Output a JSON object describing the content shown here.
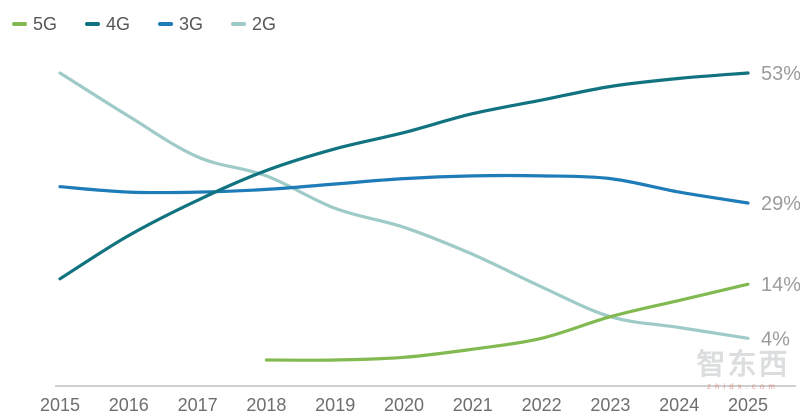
{
  "chart_data": {
    "type": "line",
    "title": "",
    "xlabel": "",
    "ylabel": "",
    "x": [
      "2015",
      "2016",
      "2017",
      "2018",
      "2019",
      "2020",
      "2021",
      "2022",
      "2023",
      "2024",
      "2025"
    ],
    "ylim": [
      0,
      56
    ],
    "grid": false,
    "legend_position": "top-left",
    "unit": "%",
    "series": [
      {
        "name": "5G",
        "color": "#82ba51",
        "end_label": "14%",
        "values": [
          null,
          null,
          null,
          0,
          0,
          0.5,
          2,
          4,
          8,
          11,
          14
        ]
      },
      {
        "name": "4G",
        "color": "#117380",
        "end_label": "53%",
        "values": [
          15,
          23,
          29.5,
          35,
          39,
          42,
          45.5,
          48,
          50.5,
          52,
          53
        ]
      },
      {
        "name": "3G",
        "color": "#1e7cb8",
        "end_label": "29%",
        "values": [
          32,
          31,
          31,
          31.5,
          32.5,
          33.5,
          34,
          34,
          33.5,
          31,
          29
        ]
      },
      {
        "name": "2G",
        "color": "#9ecbc8",
        "end_label": "4%",
        "values": [
          53,
          45,
          37.5,
          34,
          28,
          24.5,
          19.5,
          13.5,
          8,
          6,
          4
        ]
      }
    ]
  },
  "colors": {
    "axis_line": "#cdcfd0",
    "year_label": "#6d6e71",
    "value_label": "#9b9b9b",
    "legend_text": "#55575a",
    "background": "#ffffff"
  },
  "watermark": {
    "text": "智东西",
    "subtext": "zhidx.com"
  }
}
